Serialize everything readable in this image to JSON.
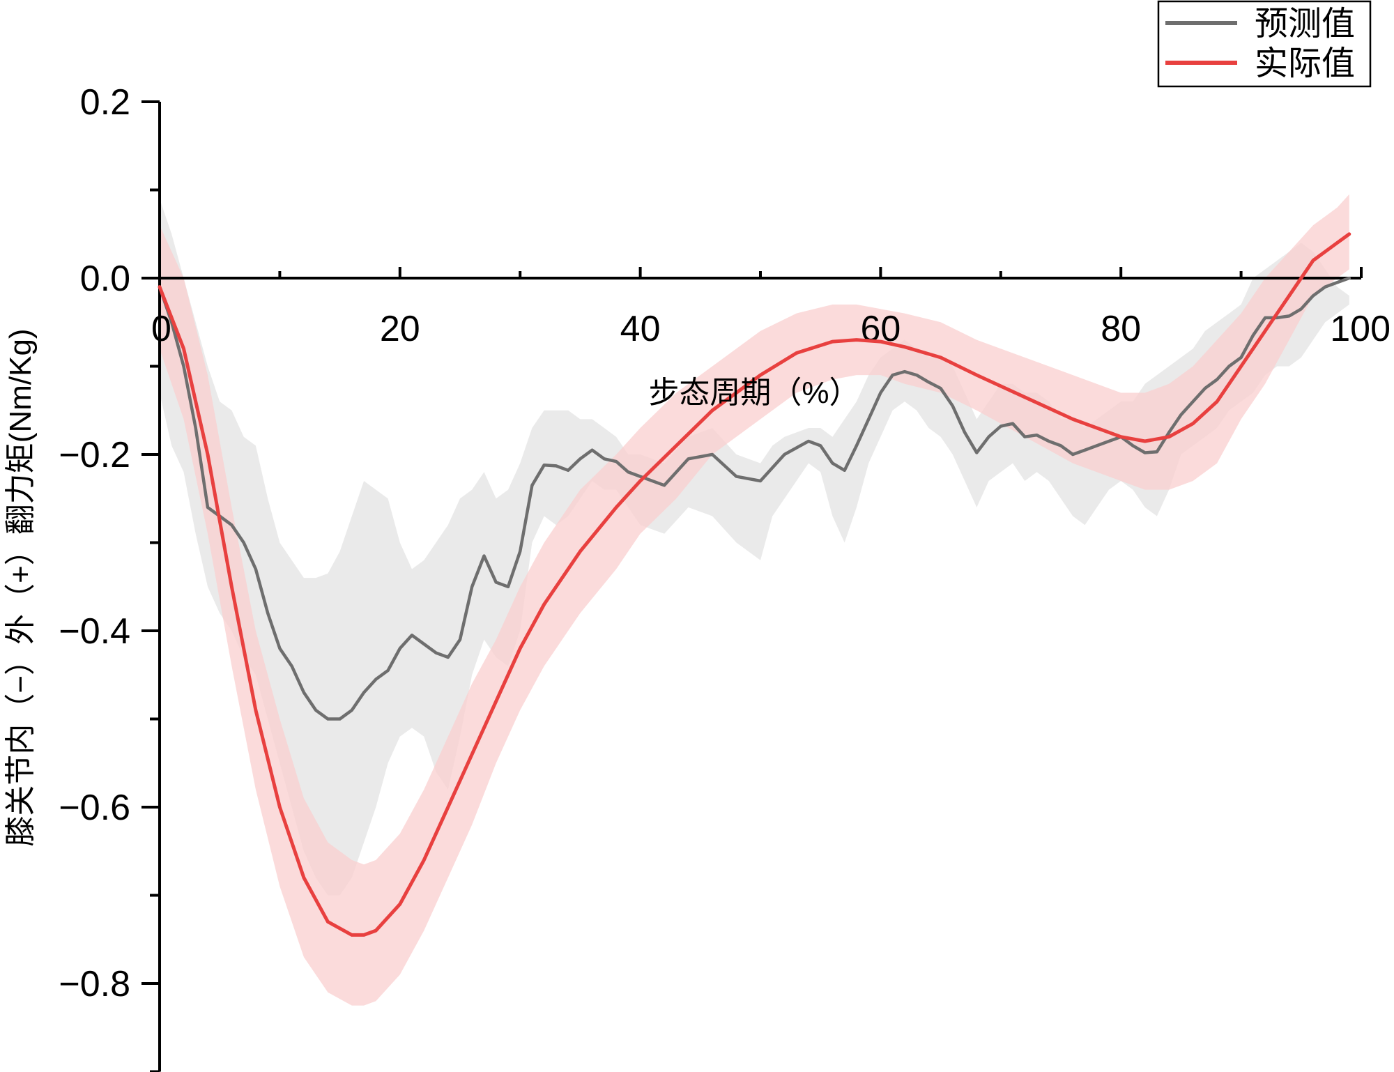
{
  "chart_data": {
    "type": "line",
    "title": "",
    "xlabel": "步态周期（%）",
    "ylabel": "膝关节内（−）外（+）翻力矩(Nm/Kg)",
    "xlim": [
      0,
      100
    ],
    "ylim": [
      -0.9,
      0.2
    ],
    "x_ticks": [
      0,
      20,
      40,
      60,
      80,
      100
    ],
    "x_tick_labels": [
      "0",
      "20",
      "40",
      "60",
      "80",
      "100"
    ],
    "y_ticks": [
      0.2,
      0.0,
      -0.2,
      -0.4,
      -0.6,
      -0.8
    ],
    "y_tick_labels": [
      "0.2",
      "0.0",
      "−0.2",
      "−0.4",
      "−0.6",
      "−0.8"
    ],
    "grid": false,
    "legend_position": "top-right",
    "series": [
      {
        "name": "预测值",
        "color": "#6e6e6e",
        "band_color": "#e6e6e6",
        "x": [
          0,
          1,
          2,
          3,
          4,
          5,
          6,
          7,
          8,
          9,
          10,
          11,
          12,
          13,
          14,
          15,
          16,
          17,
          18,
          19,
          20,
          21,
          22,
          23,
          24,
          25,
          26,
          27,
          28,
          29,
          30,
          31,
          32,
          33,
          34,
          35,
          36,
          37,
          38,
          39,
          40,
          42,
          44,
          46,
          48,
          50,
          51,
          52,
          54,
          55,
          56,
          57,
          58,
          59,
          60,
          61,
          62,
          63,
          64,
          65,
          66,
          67,
          68,
          69,
          70,
          71,
          72,
          73,
          74,
          75,
          76,
          77,
          78,
          79,
          80,
          81,
          82,
          83,
          84,
          85,
          86,
          87,
          88,
          89,
          90,
          91,
          92,
          93,
          94,
          95,
          96,
          97,
          98,
          99
        ],
        "y": [
          -0.01,
          -0.05,
          -0.1,
          -0.17,
          -0.26,
          -0.27,
          -0.28,
          -0.3,
          -0.33,
          -0.38,
          -0.42,
          -0.44,
          -0.47,
          -0.49,
          -0.5,
          -0.5,
          -0.49,
          -0.47,
          -0.455,
          -0.445,
          -0.42,
          -0.405,
          -0.415,
          -0.425,
          -0.43,
          -0.41,
          -0.35,
          -0.315,
          -0.345,
          -0.35,
          -0.31,
          -0.235,
          -0.212,
          -0.213,
          -0.218,
          -0.205,
          -0.195,
          -0.205,
          -0.208,
          -0.22,
          -0.225,
          -0.235,
          -0.205,
          -0.2,
          -0.225,
          -0.23,
          -0.215,
          -0.2,
          -0.185,
          -0.19,
          -0.21,
          -0.218,
          -0.19,
          -0.16,
          -0.13,
          -0.11,
          -0.106,
          -0.11,
          -0.118,
          -0.125,
          -0.145,
          -0.175,
          -0.198,
          -0.18,
          -0.168,
          -0.165,
          -0.18,
          -0.178,
          -0.185,
          -0.19,
          -0.2,
          -0.195,
          -0.19,
          -0.185,
          -0.18,
          -0.19,
          -0.198,
          -0.197,
          -0.175,
          -0.155,
          -0.14,
          -0.125,
          -0.115,
          -0.1,
          -0.09,
          -0.065,
          -0.045,
          -0.045,
          -0.043,
          -0.035,
          -0.02,
          -0.01,
          -0.005,
          0.0
        ],
        "band_upper": [
          0.09,
          0.05,
          0.0,
          -0.05,
          -0.1,
          -0.14,
          -0.15,
          -0.18,
          -0.19,
          -0.25,
          -0.3,
          -0.32,
          -0.34,
          -0.34,
          -0.335,
          -0.31,
          -0.27,
          -0.23,
          -0.24,
          -0.25,
          -0.3,
          -0.33,
          -0.32,
          -0.3,
          -0.28,
          -0.25,
          -0.24,
          -0.22,
          -0.25,
          -0.24,
          -0.21,
          -0.17,
          -0.15,
          -0.15,
          -0.15,
          -0.16,
          -0.16,
          -0.17,
          -0.18,
          -0.2,
          -0.2,
          -0.21,
          -0.18,
          -0.17,
          -0.2,
          -0.21,
          -0.19,
          -0.18,
          -0.17,
          -0.17,
          -0.18,
          -0.16,
          -0.14,
          -0.11,
          -0.09,
          -0.08,
          -0.07,
          -0.08,
          -0.09,
          -0.09,
          -0.1,
          -0.13,
          -0.16,
          -0.14,
          -0.12,
          -0.12,
          -0.13,
          -0.13,
          -0.14,
          -0.16,
          -0.16,
          -0.17,
          -0.16,
          -0.15,
          -0.14,
          -0.14,
          -0.12,
          -0.11,
          -0.1,
          -0.09,
          -0.08,
          -0.06,
          -0.05,
          -0.04,
          -0.03,
          0.0,
          0.01,
          0.02,
          0.03,
          0.04,
          0.03,
          0.01,
          -0.01,
          -0.02
        ],
        "band_lower": [
          -0.13,
          -0.19,
          -0.22,
          -0.29,
          -0.35,
          -0.38,
          -0.4,
          -0.43,
          -0.45,
          -0.5,
          -0.55,
          -0.6,
          -0.65,
          -0.68,
          -0.7,
          -0.7,
          -0.68,
          -0.64,
          -0.6,
          -0.55,
          -0.52,
          -0.51,
          -0.52,
          -0.56,
          -0.58,
          -0.52,
          -0.45,
          -0.41,
          -0.43,
          -0.44,
          -0.4,
          -0.3,
          -0.27,
          -0.28,
          -0.27,
          -0.25,
          -0.23,
          -0.24,
          -0.24,
          -0.26,
          -0.28,
          -0.29,
          -0.26,
          -0.27,
          -0.3,
          -0.32,
          -0.27,
          -0.25,
          -0.21,
          -0.22,
          -0.27,
          -0.3,
          -0.26,
          -0.21,
          -0.18,
          -0.15,
          -0.14,
          -0.15,
          -0.17,
          -0.18,
          -0.2,
          -0.23,
          -0.26,
          -0.23,
          -0.22,
          -0.21,
          -0.23,
          -0.22,
          -0.23,
          -0.25,
          -0.27,
          -0.28,
          -0.26,
          -0.24,
          -0.23,
          -0.24,
          -0.26,
          -0.27,
          -0.24,
          -0.2,
          -0.19,
          -0.18,
          -0.17,
          -0.15,
          -0.14,
          -0.13,
          -0.11,
          -0.1,
          -0.1,
          -0.09,
          -0.07,
          -0.05,
          -0.04,
          -0.03
        ]
      },
      {
        "name": "实际值",
        "color": "#e8403f",
        "band_color": "#f9cfcf",
        "x": [
          0,
          2,
          4,
          6,
          8,
          10,
          12,
          14,
          16,
          17,
          18,
          20,
          22,
          24,
          26,
          28,
          30,
          32,
          35,
          38,
          40,
          43,
          46,
          50,
          53,
          56,
          58,
          60,
          62,
          65,
          68,
          72,
          76,
          80,
          82,
          84,
          86,
          88,
          90,
          92,
          94,
          96,
          98,
          99
        ],
        "y": [
          -0.01,
          -0.08,
          -0.2,
          -0.35,
          -0.49,
          -0.6,
          -0.68,
          -0.73,
          -0.745,
          -0.745,
          -0.74,
          -0.71,
          -0.66,
          -0.6,
          -0.54,
          -0.48,
          -0.42,
          -0.37,
          -0.31,
          -0.26,
          -0.23,
          -0.19,
          -0.15,
          -0.11,
          -0.085,
          -0.072,
          -0.07,
          -0.072,
          -0.078,
          -0.09,
          -0.11,
          -0.135,
          -0.16,
          -0.18,
          -0.185,
          -0.18,
          -0.165,
          -0.14,
          -0.1,
          -0.06,
          -0.02,
          0.02,
          0.04,
          0.05
        ],
        "band_upper": [
          0.06,
          0.0,
          -0.11,
          -0.26,
          -0.4,
          -0.5,
          -0.59,
          -0.64,
          -0.66,
          -0.665,
          -0.66,
          -0.63,
          -0.58,
          -0.52,
          -0.46,
          -0.41,
          -0.35,
          -0.3,
          -0.24,
          -0.2,
          -0.17,
          -0.13,
          -0.1,
          -0.06,
          -0.04,
          -0.03,
          -0.03,
          -0.035,
          -0.04,
          -0.05,
          -0.07,
          -0.09,
          -0.11,
          -0.13,
          -0.13,
          -0.12,
          -0.1,
          -0.07,
          -0.04,
          0.0,
          0.03,
          0.06,
          0.08,
          0.095
        ],
        "band_lower": [
          -0.08,
          -0.16,
          -0.29,
          -0.44,
          -0.58,
          -0.69,
          -0.77,
          -0.81,
          -0.825,
          -0.825,
          -0.82,
          -0.79,
          -0.74,
          -0.68,
          -0.62,
          -0.55,
          -0.49,
          -0.44,
          -0.38,
          -0.33,
          -0.29,
          -0.25,
          -0.2,
          -0.16,
          -0.13,
          -0.115,
          -0.11,
          -0.11,
          -0.12,
          -0.13,
          -0.15,
          -0.18,
          -0.21,
          -0.23,
          -0.24,
          -0.24,
          -0.23,
          -0.21,
          -0.16,
          -0.12,
          -0.07,
          -0.02,
          0.0,
          0.01
        ]
      }
    ]
  }
}
